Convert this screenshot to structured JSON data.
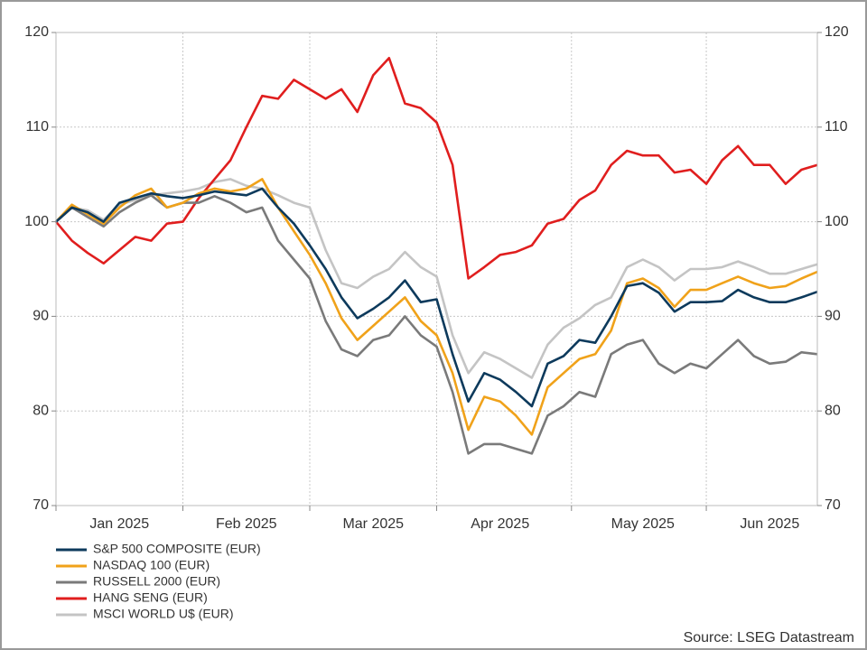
{
  "chart_data": {
    "type": "line",
    "source": "Source: LSEG Datastream",
    "categories": [
      null,
      null,
      null,
      null,
      "Jan 2025",
      null,
      null,
      null,
      null,
      null,
      null,
      null,
      "Feb 2025",
      null,
      null,
      null,
      null,
      null,
      null,
      null,
      "Mar 2025",
      null,
      null,
      null,
      null,
      null,
      null,
      null,
      "Apr 2025",
      null,
      null,
      null,
      null,
      null,
      null,
      null,
      null,
      "May 2025",
      null,
      null,
      null,
      null,
      null,
      null,
      null,
      "Jun 2025",
      null,
      null,
      null
    ],
    "ylim": [
      70,
      120
    ],
    "yticks": [
      70,
      80,
      90,
      100,
      110,
      120
    ],
    "y2lim": [
      70,
      120
    ],
    "y2ticks": [
      70,
      80,
      90,
      100,
      110,
      120
    ],
    "grid": true,
    "legend": "bottom-left",
    "series": [
      {
        "name": "S&P 500 COMPOSITE (EUR)",
        "color": "#0d3a5c",
        "values": [
          100,
          101.5,
          101,
          100,
          102,
          102.5,
          103,
          102.7,
          102.5,
          102.8,
          103.2,
          103,
          102.8,
          103.5,
          101.5,
          99.8,
          97.5,
          95,
          92,
          89.8,
          90.8,
          92,
          93.8,
          91.5,
          91.8,
          86,
          81,
          84,
          83.3,
          82,
          80.5,
          85,
          85.8,
          87.5,
          87.2,
          90,
          93.2,
          93.5,
          92.5,
          90.5,
          91.5,
          91.5,
          91.6,
          92.8,
          92,
          91.5,
          91.5,
          92,
          92.6
        ]
      },
      {
        "name": "NASDAQ 100 (EUR)",
        "color": "#f0a21a",
        "values": [
          100,
          101.8,
          100.8,
          99.8,
          101.5,
          102.8,
          103.5,
          101.5,
          102,
          103,
          103.5,
          103.2,
          103.5,
          104.5,
          101.5,
          99,
          96.5,
          93.5,
          89.8,
          87.5,
          89,
          90.5,
          92,
          89.5,
          88,
          84,
          78,
          81.5,
          81,
          79.5,
          77.5,
          82.5,
          84,
          85.5,
          86,
          88.5,
          93.5,
          94,
          93,
          91,
          92.8,
          92.8,
          93.5,
          94.2,
          93.5,
          93,
          93.2,
          94,
          94.7
        ]
      },
      {
        "name": "RUSSELL 2000 (EUR)",
        "color": "#7a7a7a",
        "values": [
          100,
          101.5,
          100.5,
          99.5,
          101,
          102,
          102.8,
          101.5,
          102,
          102,
          102.7,
          102,
          101,
          101.5,
          98,
          96,
          94,
          89.5,
          86.5,
          85.8,
          87.5,
          88,
          90,
          88,
          86.8,
          82,
          75.5,
          76.5,
          76.5,
          76,
          75.5,
          79.5,
          80.5,
          82,
          81.5,
          86,
          87,
          87.5,
          85,
          84,
          85,
          84.5,
          86,
          87.5,
          85.8,
          85,
          85.2,
          86.2,
          86
        ]
      },
      {
        "name": "HANG SENG (EUR)",
        "color": "#e01e1e",
        "values": [
          100,
          98,
          96.7,
          95.6,
          97,
          98.4,
          98,
          99.8,
          100,
          102.5,
          104.5,
          106.5,
          110,
          113.3,
          113,
          115,
          114,
          113,
          114,
          111.6,
          115.5,
          117.3,
          112.5,
          112,
          110.5,
          106,
          94,
          95.2,
          96.5,
          96.8,
          97.5,
          99.8,
          100.3,
          102.3,
          103.3,
          106,
          107.5,
          107,
          107,
          105.2,
          105.5,
          104,
          106.5,
          108,
          106,
          106,
          104,
          105.5,
          106
        ]
      },
      {
        "name": "MSCI WORLD U$ (EUR)",
        "color": "#c4c4c4",
        "values": [
          100,
          101.5,
          101.2,
          100.2,
          101.8,
          102.3,
          102.8,
          103,
          103.2,
          103.5,
          104.2,
          104.5,
          103.8,
          103.5,
          102.8,
          102,
          101.5,
          97,
          93.5,
          93,
          94.2,
          95,
          96.8,
          95.2,
          94.2,
          88,
          84,
          86.2,
          85.5,
          84.5,
          83.5,
          87,
          88.8,
          89.8,
          91.2,
          92,
          95.2,
          96,
          95.2,
          93.8,
          95,
          95,
          95.2,
          95.8,
          95.2,
          94.5,
          94.5,
          95,
          95.5
        ]
      }
    ]
  }
}
